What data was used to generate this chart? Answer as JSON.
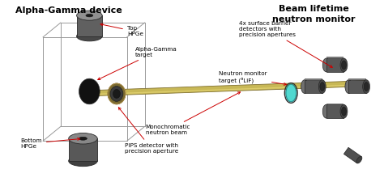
{
  "title_left": "Alpha-Gamma device",
  "title_right": "Beam lifetime\nneutron monitor",
  "label_top_hpge": "Top\nHPGe",
  "label_bottom_hpge": "Bottom\nHPGe",
  "label_ag_target": "Alpha-Gamma\ntarget",
  "label_pips": "PIPS detector with\nprecision aperture",
  "label_4x": "4x surface barrier\ndetectors with\nprecision apertures",
  "label_nm_target": "Neutron monitor\ntarget (⁶LiF)",
  "label_beam": "Monochromatic\nneutron beam",
  "bg_color": "#ffffff",
  "text_color": "#000000",
  "arrow_color": "#cc0000",
  "beam_color": "#c8b856",
  "beam_edge": "#908030"
}
